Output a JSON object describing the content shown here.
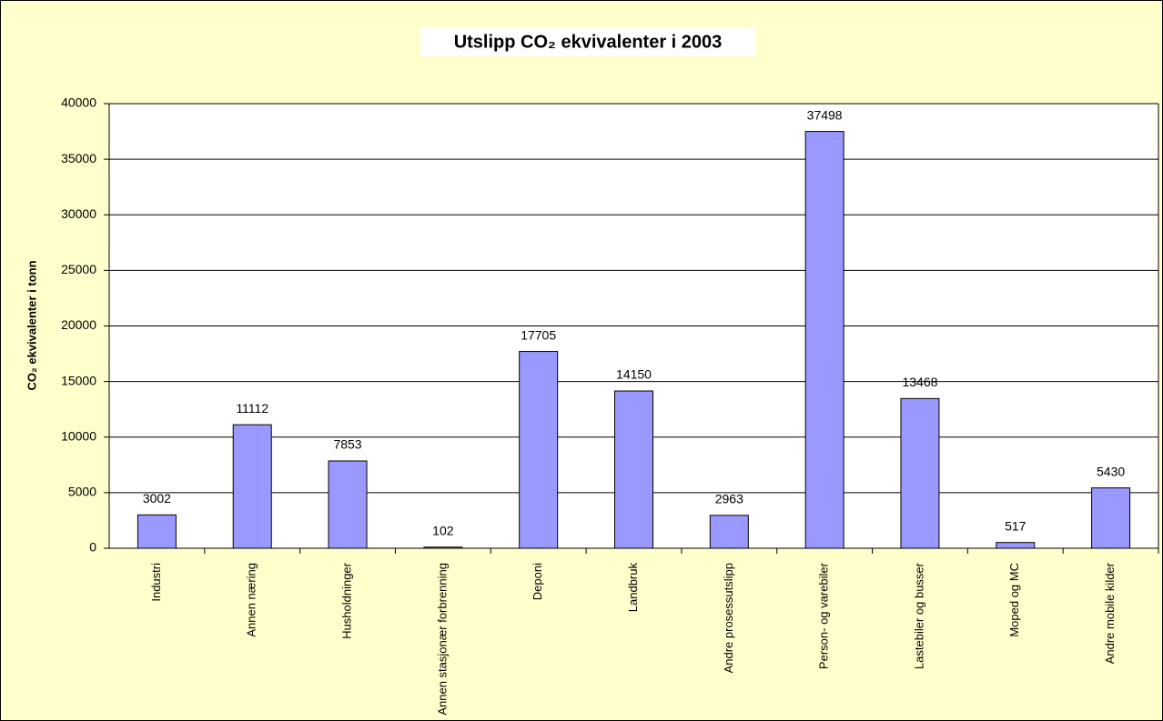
{
  "chart_data": {
    "type": "bar",
    "title": "Utslipp CO₂ ekvivalenter i 2003",
    "y_label": "CO₂ ekvivalenter i tonn",
    "categories": [
      "Industri",
      "Annen næring",
      "Husholdninger",
      "Annen stasjonær forbrenning",
      "Deponi",
      "Landbruk",
      "Andre prosessutslipp",
      "Person- og varebiler",
      "Lastebiler og busser",
      "Moped og MC",
      "Andre mobile kilder"
    ],
    "values": [
      3002,
      11112,
      7853,
      102,
      17705,
      14150,
      2963,
      37498,
      13468,
      517,
      5430
    ],
    "color": "#9999ff",
    "ylim": [
      0,
      40000
    ],
    "yticks": [
      0,
      5000,
      10000,
      15000,
      20000,
      25000,
      30000,
      35000,
      40000
    ],
    "grid": true
  }
}
